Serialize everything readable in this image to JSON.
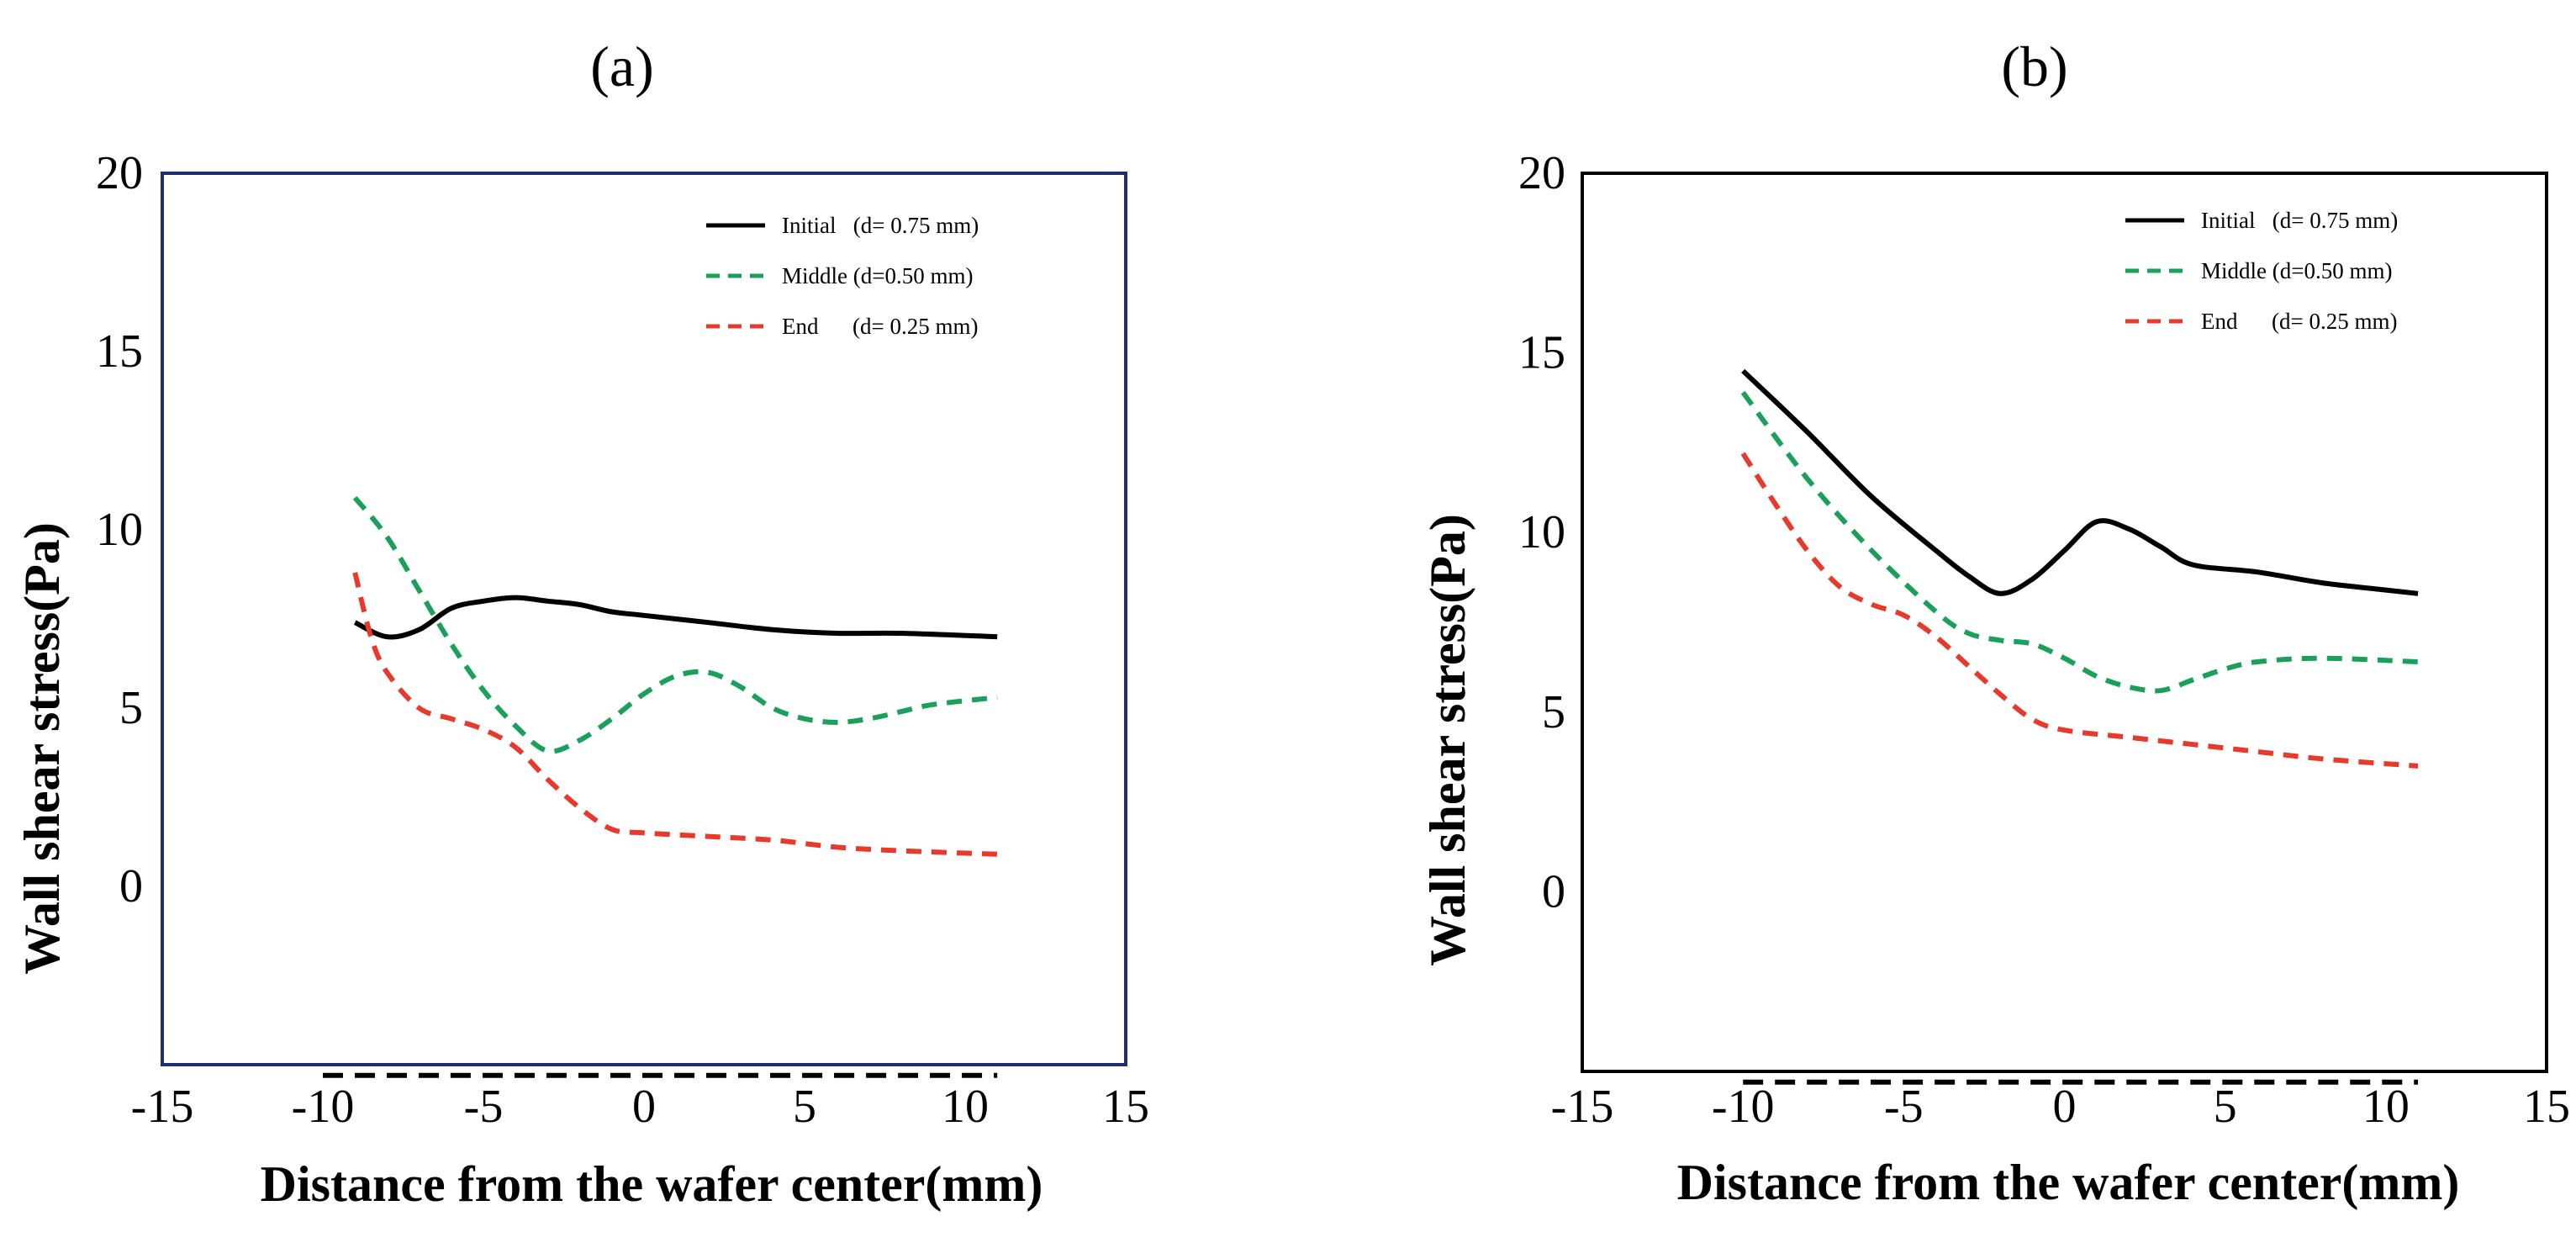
{
  "chart_data": [
    {
      "type": "line",
      "panel_label": "(a)",
      "xlabel": "Distance from the wafer center(mm)",
      "ylabel": "Wall shear stress(Pa)",
      "xlim": [
        -15,
        15
      ],
      "ylim": [
        -5,
        20
      ],
      "xticks": [
        "-15",
        "-10",
        "-5",
        "0",
        "5",
        "10",
        "15"
      ],
      "yticks": [
        "0",
        "5",
        "10",
        "15",
        "20"
      ],
      "legend": {
        "position": "top-right",
        "entries": [
          "Initial   (d= 0.75 mm)",
          "Middle (d=0.50 mm)",
          "End      (d= 0.25 mm)"
        ]
      },
      "series": [
        {
          "name": "Initial   (d= 0.75 mm)",
          "color": "#000000",
          "style": "solid",
          "x": [
            -9,
            -8,
            -7,
            -6,
            -5,
            -4,
            -3,
            -2,
            -1,
            0,
            2,
            4,
            6,
            8,
            11
          ],
          "y": [
            7.4,
            7.0,
            7.2,
            7.8,
            8.0,
            8.1,
            8.0,
            7.9,
            7.7,
            7.6,
            7.4,
            7.2,
            7.1,
            7.1,
            7.0
          ]
        },
        {
          "name": "Middle (d=0.50 mm)",
          "color": "#1aa05a",
          "style": "dashed",
          "x": [
            -9,
            -8,
            -7,
            -6,
            -5,
            -4,
            -3,
            -2,
            -1,
            0,
            1,
            2,
            3,
            4,
            5,
            6,
            7,
            8,
            9,
            11
          ],
          "y": [
            10.9,
            9.8,
            8.3,
            6.8,
            5.5,
            4.5,
            3.8,
            4.1,
            4.7,
            5.4,
            5.9,
            6.0,
            5.6,
            5.0,
            4.7,
            4.6,
            4.7,
            4.9,
            5.1,
            5.3
          ]
        },
        {
          "name": "End      (d= 0.25 mm)",
          "color": "#e83a2c",
          "style": "dashed",
          "x": [
            -9,
            -8.5,
            -8,
            -7,
            -6,
            -5,
            -4,
            -3,
            -2,
            -1,
            0,
            2,
            4,
            6,
            8,
            11
          ],
          "y": [
            8.8,
            7.0,
            6.0,
            5.0,
            4.7,
            4.4,
            3.9,
            3.0,
            2.2,
            1.6,
            1.5,
            1.4,
            1.3,
            1.1,
            1.0,
            0.9
          ]
        },
        {
          "name": "baseline",
          "color": "#000000",
          "style": "dashed",
          "x": [
            -10,
            11
          ],
          "y": [
            -5.3,
            -5.3
          ]
        }
      ]
    },
    {
      "type": "line",
      "panel_label": "(b)",
      "xlabel": "Distance from the wafer center(mm)",
      "ylabel": "Wall shear stress(Pa)",
      "xlim": [
        -15,
        15
      ],
      "ylim": [
        -5,
        20
      ],
      "xticks": [
        "-15",
        "-10",
        "-5",
        "0",
        "5",
        "10",
        "15"
      ],
      "yticks": [
        "0",
        "5",
        "10",
        "15",
        "20"
      ],
      "legend": {
        "position": "top-right",
        "entries": [
          "Initial   (d= 0.75 mm)",
          "Middle (d=0.50 mm)",
          "End      (d= 0.25 mm)"
        ]
      },
      "series": [
        {
          "name": "Initial   (d= 0.75 mm)",
          "color": "#000000",
          "style": "solid",
          "x": [
            -10,
            -8,
            -6,
            -4,
            -3,
            -2,
            -1,
            0,
            1,
            2,
            3,
            4,
            6,
            8,
            10,
            11
          ],
          "y": [
            14.5,
            12.8,
            11.0,
            9.5,
            8.8,
            8.3,
            8.7,
            9.5,
            10.3,
            10.1,
            9.6,
            9.1,
            8.9,
            8.6,
            8.4,
            8.3
          ]
        },
        {
          "name": "Middle (d=0.50 mm)",
          "color": "#1aa05a",
          "style": "dashed",
          "x": [
            -10,
            -8,
            -6,
            -4,
            -3,
            -2,
            -1,
            0,
            1,
            2,
            3,
            4,
            5,
            6,
            8,
            11
          ],
          "y": [
            13.9,
            11.5,
            9.5,
            7.8,
            7.2,
            7.0,
            6.9,
            6.5,
            6.0,
            5.7,
            5.6,
            5.9,
            6.2,
            6.4,
            6.5,
            6.4
          ]
        },
        {
          "name": "End      (d= 0.25 mm)",
          "color": "#e83a2c",
          "style": "dashed",
          "x": [
            -10,
            -9,
            -8,
            -7,
            -6,
            -5,
            -4,
            -3,
            -2,
            -1,
            0,
            2,
            4,
            6,
            8,
            11
          ],
          "y": [
            12.2,
            10.8,
            9.5,
            8.5,
            8.0,
            7.7,
            7.1,
            6.3,
            5.5,
            4.8,
            4.5,
            4.3,
            4.1,
            3.9,
            3.7,
            3.5
          ]
        },
        {
          "name": "baseline",
          "color": "#000000",
          "style": "dashed",
          "x": [
            -10,
            11
          ],
          "y": [
            -5.3,
            -5.3
          ]
        }
      ]
    }
  ]
}
